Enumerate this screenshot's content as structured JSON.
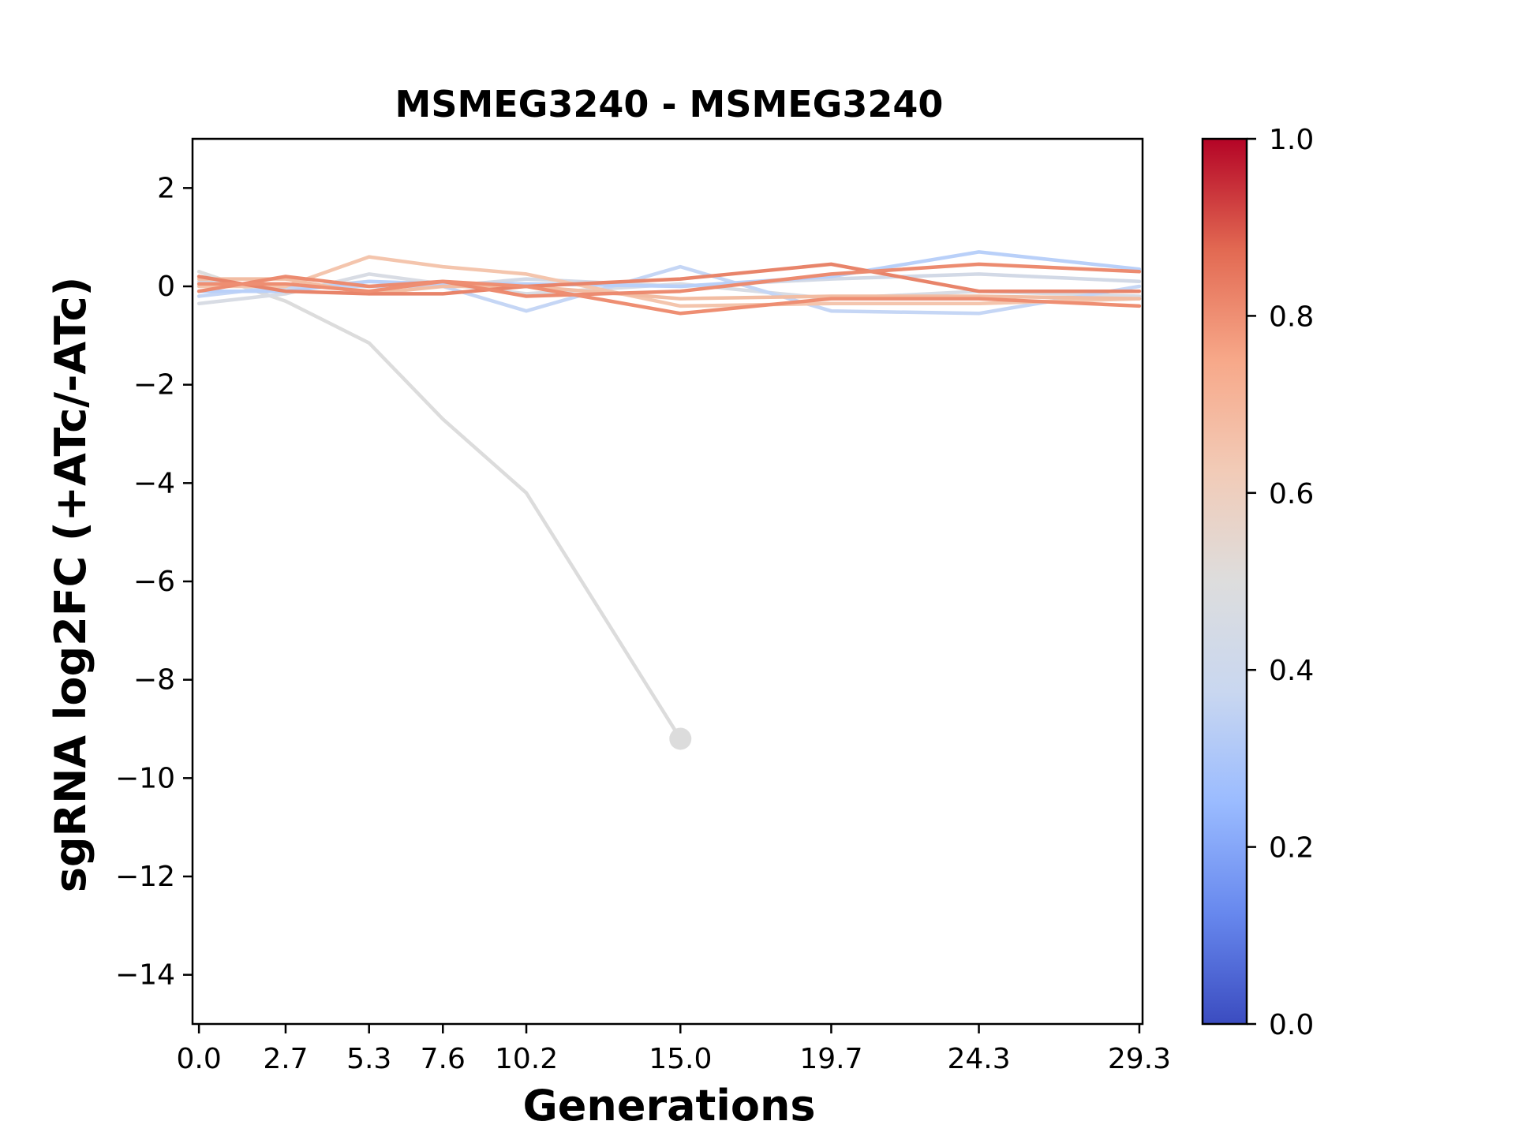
{
  "chart_data": {
    "type": "line",
    "title": "MSMEG3240 - MSMEG3240",
    "xlabel": "Generations",
    "ylabel": "sgRNA log2FC (+ATc/-ATc)",
    "x": [
      0.0,
      2.7,
      5.3,
      7.6,
      10.2,
      15.0,
      19.7,
      24.3,
      29.3
    ],
    "x_tick_labels": [
      "0.0",
      "2.7",
      "5.3",
      "7.6",
      "10.2",
      "15.0",
      "19.7",
      "24.3",
      "29.3"
    ],
    "xlim": [
      -0.2,
      29.4
    ],
    "ylim": [
      -15,
      3
    ],
    "y_ticks": [
      2,
      0,
      -2,
      -4,
      -6,
      -8,
      -10,
      -12,
      -14
    ],
    "y_tick_labels": [
      "2",
      "0",
      "−2",
      "−4",
      "−6",
      "−8",
      "−10",
      "−12",
      "−14"
    ],
    "grid": false,
    "colorbar": {
      "colormap": "coolwarm",
      "range": [
        0.0,
        1.0
      ],
      "ticks": [
        0.0,
        0.2,
        0.4,
        0.6,
        0.8,
        1.0
      ],
      "tick_labels": [
        "0.0",
        "0.2",
        "0.4",
        "0.6",
        "0.8",
        "1.0"
      ],
      "stops": [
        "#3b4cc0",
        "#6788ee",
        "#9abbff",
        "#c9d7f0",
        "#dddddd",
        "#f2cbb7",
        "#f7a889",
        "#e26952",
        "#b40426"
      ]
    },
    "series": [
      {
        "values": [
          0.3,
          -0.3,
          -1.15,
          -2.7,
          -4.2,
          -9.2,
          null,
          null,
          null
        ],
        "color": "#dcdcdc",
        "end_marker": true
      },
      {
        "values": [
          -0.35,
          -0.15,
          0.25,
          0.05,
          -0.15,
          0.05,
          -0.25,
          -0.1,
          -0.2
        ],
        "color": "#d8dce4"
      },
      {
        "values": [
          0.1,
          -0.05,
          0.1,
          0.0,
          0.15,
          0.0,
          0.15,
          0.25,
          0.1
        ],
        "color": "#d2d9e6"
      },
      {
        "values": [
          -0.2,
          0.0,
          0.0,
          0.0,
          -0.5,
          0.4,
          -0.5,
          -0.55,
          0.0
        ],
        "color": "#c5d6f5"
      },
      {
        "values": [
          -0.1,
          -0.1,
          0.1,
          0.05,
          0.05,
          0.0,
          0.2,
          0.7,
          0.35
        ],
        "color": "#b9d0f9"
      },
      {
        "values": [
          0.0,
          0.0,
          0.6,
          0.4,
          0.25,
          -0.4,
          -0.35,
          -0.35,
          -0.25
        ],
        "color": "#f4c5ad"
      },
      {
        "values": [
          0.15,
          0.15,
          -0.15,
          0.0,
          0.0,
          -0.25,
          -0.2,
          -0.2,
          -0.25
        ],
        "color": "#f2bda3"
      },
      {
        "values": [
          0.2,
          -0.1,
          -0.15,
          -0.15,
          0.0,
          0.15,
          0.45,
          -0.1,
          -0.1
        ],
        "color": "#e8846a"
      },
      {
        "values": [
          -0.1,
          0.2,
          0.0,
          0.1,
          -0.2,
          -0.1,
          0.25,
          0.45,
          0.3
        ],
        "color": "#ec8b70"
      },
      {
        "values": [
          0.05,
          0.05,
          -0.1,
          0.1,
          0.0,
          -0.55,
          -0.25,
          -0.25,
          -0.4
        ],
        "color": "#ee8e72"
      }
    ]
  }
}
